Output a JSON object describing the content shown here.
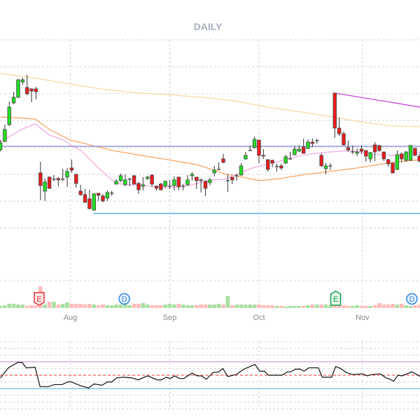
{
  "chart_data": {
    "type": "candlestick",
    "title": "DAILY",
    "x_ticks": [
      {
        "label": "Aug",
        "index": 15.7
      },
      {
        "label": "Sep",
        "index": 38
      },
      {
        "label": "Oct",
        "index": 58
      },
      {
        "label": "Nov",
        "index": 81.2
      }
    ],
    "ohlc_fields": [
      "open",
      "high",
      "low",
      "close"
    ],
    "candles": [
      [
        18.6,
        20.0,
        18.4,
        19.6
      ],
      [
        19.8,
        22.2,
        19.7,
        21.5
      ],
      [
        22.2,
        25.5,
        22.0,
        24.7
      ],
      [
        25.3,
        26.9,
        25.1,
        26.1
      ],
      [
        26.1,
        28.7,
        26.0,
        28.6
      ],
      [
        28.3,
        28.9,
        27.9,
        28.6
      ],
      [
        27.5,
        29.3,
        26.4,
        26.6
      ],
      [
        27.3,
        27.4,
        25.4,
        27.0
      ],
      [
        27.3,
        27.6,
        25.8,
        26.9
      ],
      [
        15.3,
        16.9,
        11.4,
        13.5
      ],
      [
        12.7,
        14.5,
        11.3,
        14.0
      ],
      [
        14.7,
        14.8,
        13.0,
        13.1
      ],
      [
        14.4,
        15.0,
        14.1,
        14.4
      ],
      [
        14.5,
        14.7,
        13.4,
        14.3
      ],
      [
        14.4,
        15.9,
        14.1,
        14.4
      ],
      [
        14.7,
        16.0,
        13.3,
        15.5
      ],
      [
        16.0,
        17.2,
        15.3,
        15.7
      ],
      [
        15.1,
        15.1,
        13.2,
        13.8
      ],
      [
        12.7,
        13.6,
        12.0,
        12.2
      ],
      [
        12.2,
        13.0,
        11.0,
        11.1
      ],
      [
        11.6,
        12.9,
        10.1,
        10.2
      ],
      [
        10.0,
        12.4,
        9.9,
        12.3
      ],
      [
        12.4,
        12.4,
        11.3,
        12.1
      ],
      [
        12.0,
        12.3,
        11.1,
        11.3
      ],
      [
        11.7,
        12.8,
        11.3,
        12.5
      ],
      [
        12.4,
        12.7,
        12.0,
        12.4
      ],
      [
        13.7,
        14.4,
        13.7,
        14.1
      ],
      [
        14.2,
        15.2,
        14.0,
        14.9
      ],
      [
        13.6,
        15.1,
        13.4,
        14.3
      ],
      [
        14.4,
        14.6,
        13.4,
        14.4
      ],
      [
        14.9,
        15.0,
        13.7,
        13.7
      ],
      [
        13.8,
        14.0,
        12.3,
        12.9
      ],
      [
        13.4,
        14.7,
        12.8,
        13.6
      ],
      [
        14.5,
        14.9,
        14.3,
        14.7
      ],
      [
        15.0,
        15.0,
        13.3,
        13.7
      ],
      [
        13.4,
        13.5,
        12.8,
        13.1
      ],
      [
        13.7,
        13.9,
        12.8,
        12.9
      ],
      [
        13.4,
        14.2,
        13.2,
        14.1
      ],
      [
        13.4,
        14.3,
        13.0,
        13.4
      ],
      [
        13.5,
        14.8,
        12.8,
        14.3
      ],
      [
        14.7,
        14.7,
        12.8,
        13.3
      ],
      [
        13.4,
        13.7,
        12.8,
        13.4
      ],
      [
        13.6,
        15.0,
        13.5,
        14.3
      ],
      [
        14.9,
        15.4,
        14.2,
        15.1
      ],
      [
        14.7,
        14.7,
        13.0,
        14.2
      ],
      [
        14.3,
        14.5,
        12.5,
        14.2
      ],
      [
        14.1,
        14.2,
        12.0,
        13.1
      ],
      [
        13.9,
        14.6,
        13.5,
        14.3
      ],
      [
        15.3,
        16.3,
        14.8,
        15.7
      ],
      [
        15.8,
        16.8,
        15.7,
        15.8
      ],
      [
        17.3,
        18.0,
        16.7,
        16.8
      ],
      [
        14.2,
        15.1,
        12.6,
        14.2
      ],
      [
        14.7,
        14.7,
        13.7,
        14.3
      ],
      [
        14.9,
        15.2,
        14.2,
        14.9
      ],
      [
        15.0,
        16.7,
        14.9,
        16.3
      ],
      [
        17.3,
        18.3,
        17.2,
        17.8
      ],
      [
        18.5,
        19.2,
        18.4,
        18.5
      ],
      [
        18.9,
        20.5,
        18.8,
        20.1
      ],
      [
        20.0,
        20.0,
        16.7,
        17.8
      ],
      [
        17.8,
        18.7,
        17.3,
        17.7
      ],
      [
        17.2,
        17.2,
        15.5,
        15.8
      ],
      [
        17.1,
        17.2,
        16.1,
        16.7
      ],
      [
        16.2,
        16.6,
        15.5,
        16.2
      ],
      [
        16.3,
        16.6,
        15.7,
        16.0
      ],
      [
        16.7,
        17.9,
        16.6,
        17.6
      ],
      [
        17.3,
        18.3,
        17.2,
        17.3
      ],
      [
        17.9,
        19.1,
        17.8,
        18.7
      ],
      [
        18.4,
        19.2,
        18.3,
        18.7
      ],
      [
        19.0,
        20.2,
        18.1,
        18.1
      ],
      [
        18.8,
        20.1,
        18.7,
        19.7
      ],
      [
        19.7,
        20.2,
        19.0,
        19.5
      ],
      [
        19.9,
        20.2,
        19.5,
        19.9
      ],
      [
        17.8,
        18.1,
        16.2,
        16.3
      ],
      [
        15.9,
        16.7,
        15.1,
        16.3
      ],
      [
        16.3,
        16.7,
        15.7,
        16.3
      ],
      [
        26.7,
        26.7,
        20.3,
        21.7
      ],
      [
        21.7,
        23.2,
        20.6,
        20.9
      ],
      [
        20.9,
        21.2,
        19.2,
        19.3
      ],
      [
        18.9,
        19.9,
        18.3,
        18.6
      ],
      [
        18.3,
        19.2,
        18.0,
        18.3
      ],
      [
        18.1,
        18.8,
        17.7,
        18.3
      ],
      [
        18.7,
        19.2,
        18.0,
        18.4
      ],
      [
        18.5,
        18.5,
        16.9,
        17.7
      ],
      [
        17.3,
        18.3,
        16.8,
        18.2
      ],
      [
        19.3,
        19.7,
        17.0,
        18.3
      ],
      [
        19.2,
        19.3,
        18.3,
        18.5
      ],
      [
        18.3,
        18.3,
        17.0,
        17.3
      ],
      [
        17.2,
        17.3,
        16.2,
        16.6
      ],
      [
        16.7,
        16.7,
        15.2,
        15.3
      ],
      [
        15.8,
        18.5,
        15.7,
        17.9
      ],
      [
        18.0,
        18.2,
        16.8,
        17.3
      ],
      [
        17.1,
        18.4,
        16.9,
        18.3
      ],
      [
        17.1,
        19.3,
        17.0,
        19.2
      ],
      [
        18.8,
        18.9,
        17.7,
        17.8
      ],
      [
        17.7,
        18.0,
        16.8,
        17.0
      ]
    ],
    "volume": [
      3,
      4,
      6,
      6,
      5,
      5,
      3,
      4,
      4,
      31,
      5,
      9,
      9,
      5,
      6,
      8,
      6,
      6,
      6,
      5,
      6,
      5,
      4,
      5,
      4,
      4,
      5,
      5,
      5,
      4,
      6,
      6,
      7,
      5,
      4,
      4,
      4,
      5,
      6,
      5,
      6,
      5,
      4,
      4,
      4,
      5,
      5,
      5,
      5,
      6,
      5,
      17,
      4,
      5,
      5,
      5,
      5,
      5,
      5,
      4,
      4,
      4,
      3,
      3,
      2,
      3,
      3,
      3,
      3,
      4,
      5,
      5,
      5,
      5,
      4,
      4,
      5,
      4,
      3,
      3,
      4,
      3,
      3,
      3,
      4,
      7,
      5,
      5,
      6,
      5,
      6,
      4,
      3,
      4,
      5
    ],
    "moving_averages": [
      {
        "color": "#f8d8a4",
        "points": [
          [
            0,
            29.5
          ],
          [
            6.3,
            29.0
          ],
          [
            15.7,
            28.0
          ],
          [
            23.5,
            27.2
          ],
          [
            31.4,
            26.7
          ],
          [
            39.2,
            26.4
          ],
          [
            47.1,
            26.0
          ],
          [
            53.4,
            25.5
          ],
          [
            59.7,
            24.7
          ],
          [
            67.5,
            24.0
          ],
          [
            75.4,
            23.2
          ],
          [
            81.6,
            22.5
          ],
          [
            87.9,
            22.0
          ],
          [
            94.2,
            21.9
          ]
        ]
      },
      {
        "color": "#f7a463",
        "points": [
          [
            0,
            23.3
          ],
          [
            7.8,
            23.0
          ],
          [
            11,
            21.5
          ],
          [
            15.7,
            20.0
          ],
          [
            25.1,
            18.5
          ],
          [
            34.5,
            17.5
          ],
          [
            44,
            16.5
          ],
          [
            50.2,
            15.2
          ],
          [
            58.1,
            14.2
          ],
          [
            62.8,
            14.5
          ],
          [
            67.5,
            15.0
          ],
          [
            73.8,
            15.5
          ],
          [
            80,
            16.0
          ],
          [
            87.9,
            16.8
          ],
          [
            94.2,
            17.2
          ]
        ]
      },
      {
        "color": "#f2abe2",
        "points": [
          [
            0,
            19.7
          ],
          [
            4.7,
            21.5
          ],
          [
            7.8,
            22.3
          ],
          [
            11,
            20.7
          ],
          [
            14.1,
            20.0
          ],
          [
            15.7,
            19.3
          ],
          [
            18.1,
            18.5
          ],
          [
            22,
            16.0
          ],
          [
            25.9,
            13.8
          ],
          [
            31.4,
            13.5
          ],
          [
            37.7,
            13.2
          ],
          [
            42.4,
            13.5
          ],
          [
            47.1,
            14.3
          ],
          [
            50.2,
            14.4
          ],
          [
            56.5,
            16.0
          ],
          [
            62.8,
            17.0
          ],
          [
            67.5,
            17.8
          ],
          [
            72.2,
            18.2
          ],
          [
            78.5,
            18.5
          ],
          [
            83.2,
            18.0
          ],
          [
            87.9,
            17.8
          ],
          [
            94.2,
            18.2
          ]
        ]
      }
    ],
    "horizontal_lines": [
      {
        "price": 19.1,
        "from_index": 0,
        "color": "#9a9ad8"
      },
      {
        "price": 9.5,
        "from_index": 20.9,
        "color": "#5ab0e0"
      }
    ],
    "trend_line": {
      "from": [
        75,
        26.7
      ],
      "to": [
        94.2,
        24.7
      ],
      "color": "#c248d2"
    },
    "events": [
      {
        "label": "E",
        "index": 8.7,
        "kind": "earnings",
        "color": "#e8343c"
      },
      {
        "label": "D",
        "index": 27.8,
        "kind": "dividend",
        "color": "#2f86e8"
      },
      {
        "label": "E",
        "index": 75.2,
        "kind": "earnings",
        "color": "#0f9d48"
      },
      {
        "label": "D",
        "index": 92.3,
        "kind": "dividend",
        "color": "#2f86e8"
      }
    ],
    "oscillator": {
      "ylim": [
        0,
        100
      ],
      "levels": [
        {
          "value": 70,
          "color": "#dca6ea"
        },
        {
          "value": 50,
          "color": "#f05a5a"
        },
        {
          "value": 30,
          "color": "#7cc0ea"
        }
      ],
      "points": [
        [
          0,
          45.8
        ],
        [
          1.8,
          61
        ],
        [
          3.9,
          69
        ],
        [
          4.9,
          69
        ],
        [
          5.8,
          61
        ],
        [
          7.8,
          62
        ],
        [
          8.9,
          33
        ],
        [
          10.8,
          33
        ],
        [
          12.1,
          36
        ],
        [
          13.8,
          36
        ],
        [
          15.1,
          40
        ],
        [
          15.9,
          40
        ],
        [
          18.1,
          34
        ],
        [
          19.8,
          31
        ],
        [
          21,
          37
        ],
        [
          22.8,
          35
        ],
        [
          24,
          40
        ],
        [
          25,
          40
        ],
        [
          26.1,
          46
        ],
        [
          27.6,
          47
        ],
        [
          29.5,
          46
        ],
        [
          30.9,
          43
        ],
        [
          33,
          49
        ],
        [
          35.2,
          43
        ],
        [
          36.1,
          43
        ],
        [
          37.2,
          47
        ],
        [
          38.1,
          45
        ],
        [
          39.1,
          49
        ],
        [
          40.2,
          45
        ],
        [
          41.1,
          45
        ],
        [
          43,
          53
        ],
        [
          44.1,
          49
        ],
        [
          45.1,
          49
        ],
        [
          46.2,
          44
        ],
        [
          47.7,
          54
        ],
        [
          49,
          55
        ],
        [
          49.9,
          60
        ],
        [
          51,
          48
        ],
        [
          52.9,
          51
        ],
        [
          54.6,
          59
        ],
        [
          57.1,
          66
        ],
        [
          58.2,
          56
        ],
        [
          59.2,
          56
        ],
        [
          60.1,
          50
        ],
        [
          63.1,
          50
        ],
        [
          64.4,
          55
        ],
        [
          65.1,
          55
        ],
        [
          66.2,
          59
        ],
        [
          67.3,
          59
        ],
        [
          68.1,
          56
        ],
        [
          69.2,
          61
        ],
        [
          71.3,
          61
        ],
        [
          72.2,
          47
        ],
        [
          74.3,
          47
        ],
        [
          75.2,
          63
        ],
        [
          76.3,
          60
        ],
        [
          77.6,
          54
        ],
        [
          79,
          51
        ],
        [
          81.2,
          52
        ],
        [
          82.3,
          49
        ],
        [
          83.2,
          51
        ],
        [
          85.2,
          52
        ],
        [
          86.5,
          46
        ],
        [
          87.4,
          44
        ],
        [
          88.2,
          41
        ],
        [
          89.2,
          50
        ],
        [
          90.1,
          49
        ],
        [
          92.3,
          55
        ],
        [
          94.2,
          48
        ]
      ]
    },
    "colors": {
      "up": "#22e022",
      "down": "#ee1c1c",
      "volume_up": "#a9e0a2",
      "volume_down": "#ffbcbc",
      "grid": "#d4d4d4"
    },
    "grid": true
  }
}
